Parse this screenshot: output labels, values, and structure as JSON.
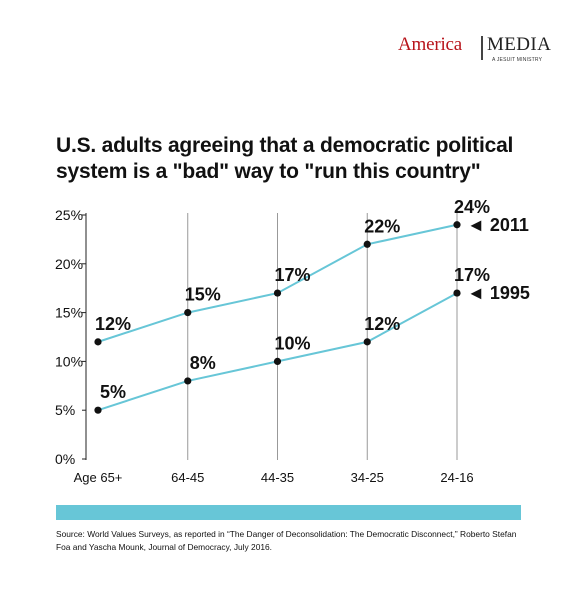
{
  "logo": {
    "left": "America",
    "right": "MEDIA",
    "tagline": "A JESUIT MINISTRY"
  },
  "title_line1": "U.S. adults agreeing that a democratic political",
  "title_line2": "system is a \"bad\" way to \"run this country\"",
  "source": "Source: World Values Surveys, as reported in “The Danger of Deconsolidation: The Democratic Disconnect,” Roberto Stefan Foa and Yascha Mounk, Journal of Democracy, July 2016.",
  "colors": {
    "line": "#67c6d7",
    "band": "#67c6d7",
    "point": "#111111",
    "logo_red": "#b8141b"
  },
  "chart_data": {
    "type": "line",
    "title": "U.S. adults agreeing that a democratic political system is a \"bad\" way to \"run this country\"",
    "categories": [
      "Age 65+",
      "64-45",
      "44-35",
      "34-25",
      "24-16"
    ],
    "ylim": [
      0,
      25
    ],
    "yticks": [
      "0%",
      "5%",
      "10%",
      "15%",
      "20%",
      "25%"
    ],
    "grid": "vertical lines at each category",
    "series": [
      {
        "name": "2011",
        "values": [
          12,
          15,
          17,
          22,
          24
        ],
        "labels": [
          "12%",
          "15%",
          "17%",
          "22%",
          "24%"
        ],
        "end_label": "◄ 2011"
      },
      {
        "name": "1995",
        "values": [
          5,
          8,
          10,
          12,
          17
        ],
        "labels": [
          "5%",
          "8%",
          "10%",
          "12%",
          "17%"
        ],
        "end_label": "◄ 1995"
      }
    ]
  }
}
